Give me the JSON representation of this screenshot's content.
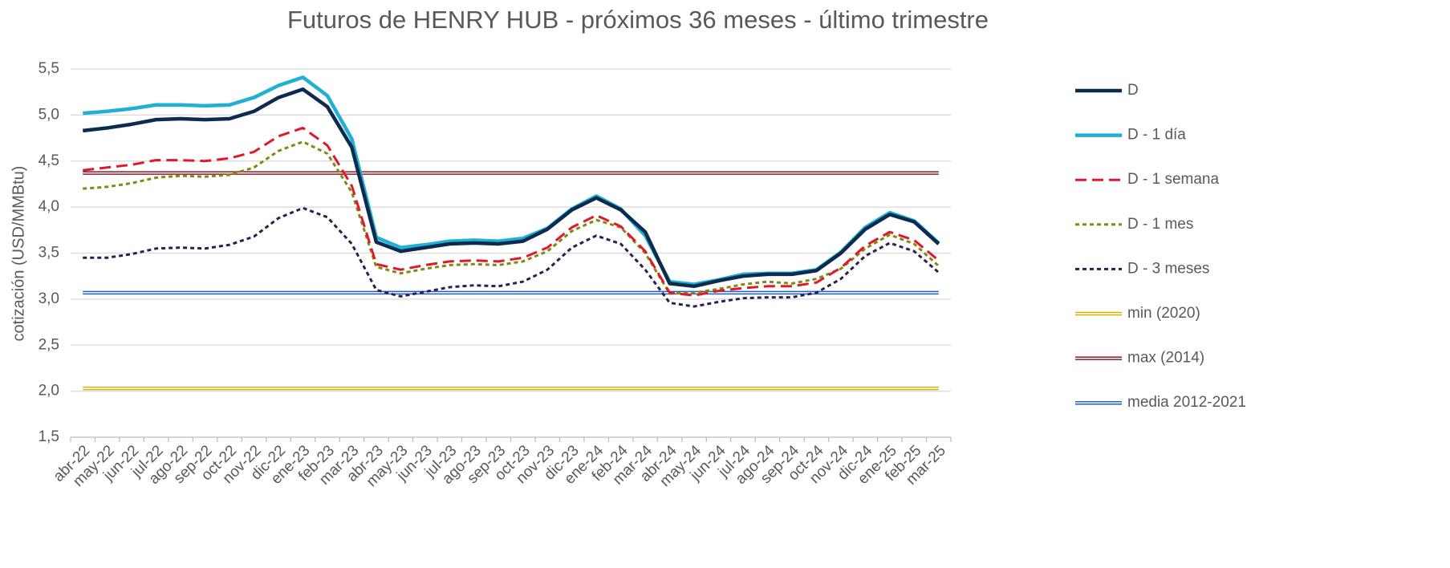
{
  "chart_data": {
    "type": "line",
    "title": "Futuros de HENRY HUB - próximos 36 meses - último trimestre",
    "y_label": "cotización (USD/MMBtu)",
    "categories": [
      "abr-22",
      "may-22",
      "jun-22",
      "jul-22",
      "ago-22",
      "sep-22",
      "oct-22",
      "nov-22",
      "dic-22",
      "ene-23",
      "feb-23",
      "mar-23",
      "abr-23",
      "may-23",
      "jun-23",
      "jul-23",
      "ago-23",
      "sep-23",
      "oct-23",
      "nov-23",
      "dic-23",
      "ene-24",
      "feb-24",
      "mar-24",
      "abr-24",
      "may-24",
      "jun-24",
      "jul-24",
      "ago-24",
      "sep-24",
      "oct-24",
      "nov-24",
      "dic-24",
      "ene-25",
      "feb-25",
      "mar-25"
    ],
    "series": [
      {
        "name": "D",
        "color": "#0d2a4f",
        "style": "solid",
        "values": [
          4.83,
          4.86,
          4.9,
          4.95,
          4.96,
          4.95,
          4.96,
          5.04,
          5.19,
          5.28,
          5.09,
          4.65,
          3.62,
          3.52,
          3.56,
          3.6,
          3.61,
          3.6,
          3.63,
          3.76,
          3.97,
          4.1,
          3.97,
          3.73,
          3.17,
          3.14,
          3.2,
          3.25,
          3.27,
          3.27,
          3.31,
          3.5,
          3.76,
          3.92,
          3.84,
          3.6
        ]
      },
      {
        "name": "D - 1 día",
        "color": "#1fb0d4",
        "style": "solid",
        "values": [
          5.02,
          5.04,
          5.07,
          5.11,
          5.11,
          5.1,
          5.11,
          5.19,
          5.32,
          5.41,
          5.21,
          4.74,
          3.67,
          3.56,
          3.59,
          3.63,
          3.64,
          3.63,
          3.66,
          3.77,
          3.98,
          4.12,
          3.98,
          3.69,
          3.19,
          3.16,
          3.21,
          3.27,
          3.28,
          3.28,
          3.32,
          3.51,
          3.78,
          3.94,
          3.85,
          3.61
        ]
      },
      {
        "name": "D - 1 semana",
        "color": "#e0182d",
        "style": "dashed",
        "values": [
          4.4,
          4.43,
          4.46,
          4.51,
          4.51,
          4.5,
          4.53,
          4.6,
          4.77,
          4.86,
          4.67,
          4.23,
          3.38,
          3.32,
          3.37,
          3.41,
          3.42,
          3.41,
          3.45,
          3.56,
          3.78,
          3.91,
          3.79,
          3.52,
          3.07,
          3.04,
          3.09,
          3.12,
          3.14,
          3.14,
          3.18,
          3.34,
          3.58,
          3.73,
          3.64,
          3.42
        ]
      },
      {
        "name": "D - 1 mes",
        "color": "#7f8a12",
        "style": "dotted",
        "values": [
          4.2,
          4.22,
          4.26,
          4.32,
          4.34,
          4.33,
          4.35,
          4.43,
          4.61,
          4.71,
          4.58,
          4.16,
          3.35,
          3.28,
          3.33,
          3.37,
          3.38,
          3.37,
          3.41,
          3.52,
          3.74,
          3.86,
          3.78,
          3.5,
          3.06,
          3.07,
          3.11,
          3.16,
          3.19,
          3.17,
          3.22,
          3.33,
          3.55,
          3.7,
          3.6,
          3.36
        ]
      },
      {
        "name": "D - 3 meses",
        "color": "#2e1f4f",
        "style": "dotted",
        "values": [
          3.45,
          3.45,
          3.49,
          3.55,
          3.56,
          3.55,
          3.59,
          3.68,
          3.88,
          3.99,
          3.89,
          3.6,
          3.1,
          3.03,
          3.08,
          3.13,
          3.15,
          3.14,
          3.19,
          3.32,
          3.56,
          3.69,
          3.6,
          3.32,
          2.96,
          2.92,
          2.97,
          3.01,
          3.02,
          3.02,
          3.07,
          3.22,
          3.47,
          3.61,
          3.52,
          3.29
        ]
      },
      {
        "name": "min (2020)",
        "color": "#d4b20a",
        "style": "double",
        "values": [
          2.03,
          2.03,
          2.03,
          2.03,
          2.03,
          2.03,
          2.03,
          2.03,
          2.03,
          2.03,
          2.03,
          2.03,
          2.03,
          2.03,
          2.03,
          2.03,
          2.03,
          2.03,
          2.03,
          2.03,
          2.03,
          2.03,
          2.03,
          2.03,
          2.03,
          2.03,
          2.03,
          2.03,
          2.03,
          2.03,
          2.03,
          2.03,
          2.03,
          2.03,
          2.03,
          2.03
        ]
      },
      {
        "name": "max (2014)",
        "color": "#8b1a2a",
        "style": "double",
        "values": [
          4.37,
          4.37,
          4.37,
          4.37,
          4.37,
          4.37,
          4.37,
          4.37,
          4.37,
          4.37,
          4.37,
          4.37,
          4.37,
          4.37,
          4.37,
          4.37,
          4.37,
          4.37,
          4.37,
          4.37,
          4.37,
          4.37,
          4.37,
          4.37,
          4.37,
          4.37,
          4.37,
          4.37,
          4.37,
          4.37,
          4.37,
          4.37,
          4.37,
          4.37,
          4.37,
          4.37
        ]
      },
      {
        "name": "media 2012-2021",
        "color": "#1f5fbf",
        "style": "double",
        "values": [
          3.07,
          3.07,
          3.07,
          3.07,
          3.07,
          3.07,
          3.07,
          3.07,
          3.07,
          3.07,
          3.07,
          3.07,
          3.07,
          3.07,
          3.07,
          3.07,
          3.07,
          3.07,
          3.07,
          3.07,
          3.07,
          3.07,
          3.07,
          3.07,
          3.07,
          3.07,
          3.07,
          3.07,
          3.07,
          3.07,
          3.07,
          3.07,
          3.07,
          3.07,
          3.07,
          3.07
        ]
      }
    ],
    "ylim": [
      1.5,
      5.5
    ],
    "yticks": [
      {
        "value": 1.5,
        "label": "1,5"
      },
      {
        "value": 2.0,
        "label": "2,0"
      },
      {
        "value": 2.5,
        "label": "2,5"
      },
      {
        "value": 3.0,
        "label": "3,0"
      },
      {
        "value": 3.5,
        "label": "3,5"
      },
      {
        "value": 4.0,
        "label": "4,0"
      },
      {
        "value": 4.5,
        "label": "4,5"
      },
      {
        "value": 5.0,
        "label": "5,0"
      },
      {
        "value": 5.5,
        "label": "5,5"
      }
    ],
    "grid": true,
    "legend": "right"
  }
}
